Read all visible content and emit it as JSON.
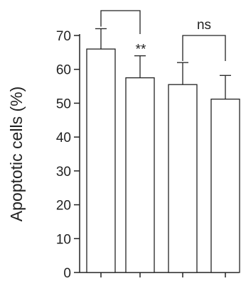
{
  "chart_data": {
    "type": "bar",
    "ylabel": "Apoptotic cells (%)",
    "ylim": [
      0,
      70
    ],
    "yticks": [
      0,
      10,
      20,
      30,
      40,
      50,
      60,
      70
    ],
    "values": [
      66,
      57.5,
      55.5,
      51.2
    ],
    "errors": [
      6,
      6.5,
      6.5,
      7
    ],
    "bar_labels": [
      "",
      "**",
      "",
      ""
    ],
    "brackets": [
      {
        "from": 0,
        "to": 1,
        "label": ""
      },
      {
        "from": 2,
        "to": 3,
        "label": "ns"
      }
    ],
    "grid": false
  }
}
